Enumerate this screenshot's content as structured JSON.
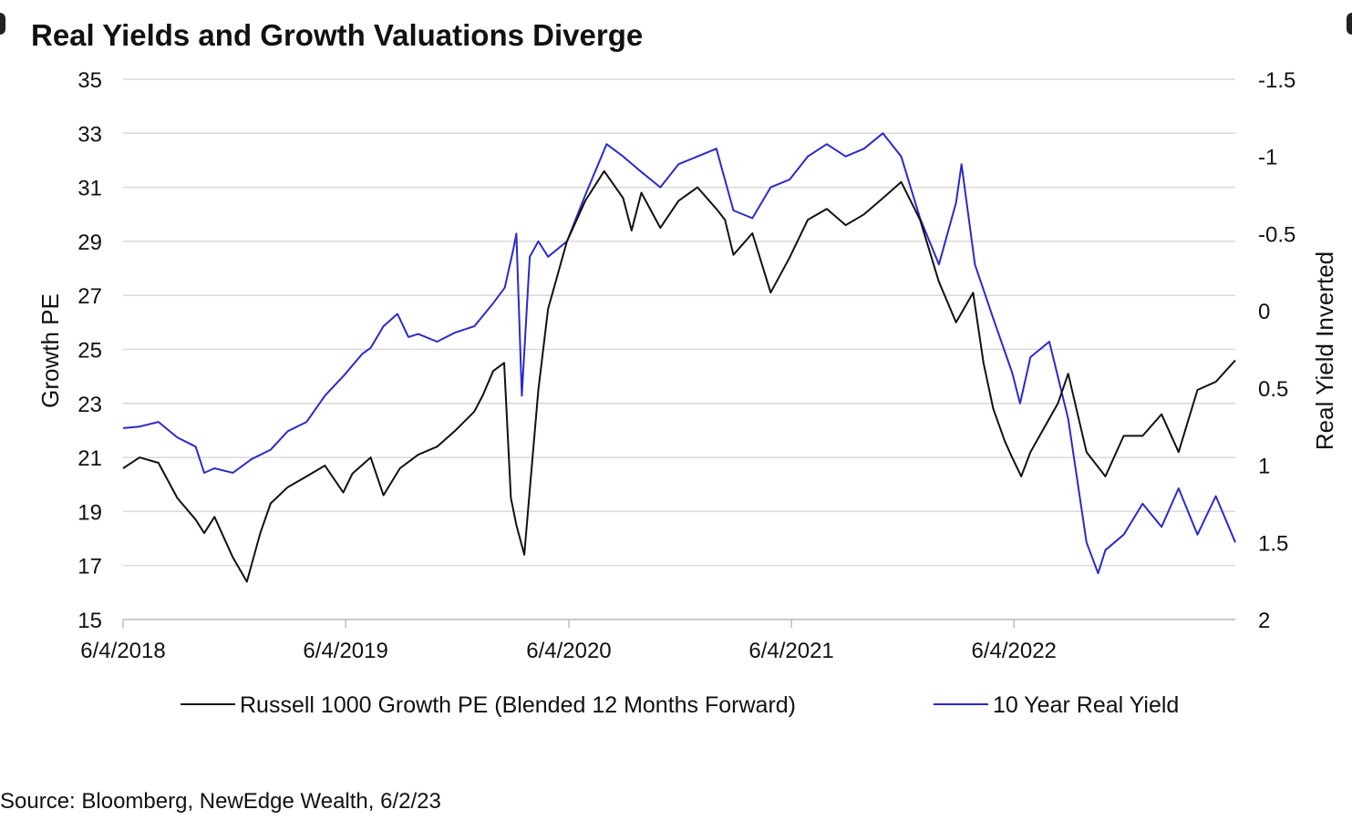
{
  "title": "Real Yields and Growth Valuations Diverge",
  "source": "Source: Bloomberg, NewEdge Wealth, 6/2/23",
  "chart_data": {
    "type": "line",
    "title": "Real Yields and Growth Valuations Diverge",
    "xlabel": "",
    "ylabel": "Growth PE",
    "ylabel_right": "Real Yield Inverted",
    "ylim": [
      15,
      35
    ],
    "ylim_right": [
      2,
      -1.5
    ],
    "right_axis_inverted": true,
    "yticks": [
      "35",
      "33",
      "31",
      "29",
      "27",
      "25",
      "23",
      "21",
      "19",
      "17",
      "15"
    ],
    "yticks_right": [
      "-1.5",
      "-1",
      "-0.5",
      "0",
      "0.5",
      "1",
      "1.5",
      "2"
    ],
    "xticks": [
      "6/4/2018",
      "6/4/2019",
      "6/4/2020",
      "6/4/2021",
      "6/4/2022"
    ],
    "xlim": [
      "2018-06-04",
      "2023-06-02"
    ],
    "grid": "horizontal",
    "legend_position": "bottom",
    "series": [
      {
        "name": "Russell 1000 Growth PE (Blended 12 Months Forward)",
        "axis": "left",
        "color": "#111111",
        "x": [
          "2018-06-04",
          "2018-07-01",
          "2018-08-01",
          "2018-09-01",
          "2018-10-01",
          "2018-10-15",
          "2018-11-01",
          "2018-12-01",
          "2018-12-24",
          "2019-01-15",
          "2019-02-01",
          "2019-03-01",
          "2019-04-01",
          "2019-05-01",
          "2019-05-31",
          "2019-06-15",
          "2019-07-15",
          "2019-08-05",
          "2019-09-01",
          "2019-10-01",
          "2019-11-01",
          "2019-12-01",
          "2020-01-01",
          "2020-01-15",
          "2020-02-01",
          "2020-02-19",
          "2020-03-01",
          "2020-03-10",
          "2020-03-23",
          "2020-04-01",
          "2020-04-15",
          "2020-05-01",
          "2020-06-01",
          "2020-07-01",
          "2020-08-01",
          "2020-09-01",
          "2020-09-15",
          "2020-10-01",
          "2020-11-01",
          "2020-12-01",
          "2021-01-01",
          "2021-02-01",
          "2021-02-15",
          "2021-03-01",
          "2021-04-01",
          "2021-05-01",
          "2021-06-01",
          "2021-07-01",
          "2021-08-01",
          "2021-09-01",
          "2021-10-01",
          "2021-11-01",
          "2021-12-01",
          "2022-01-01",
          "2022-02-01",
          "2022-03-01",
          "2022-03-29",
          "2022-04-15",
          "2022-05-01",
          "2022-05-20",
          "2022-06-01",
          "2022-06-16",
          "2022-07-01",
          "2022-08-15",
          "2022-09-01",
          "2022-10-01",
          "2022-11-01",
          "2022-12-01",
          "2023-01-01",
          "2023-02-01",
          "2023-03-01",
          "2023-04-01",
          "2023-05-01",
          "2023-06-02"
        ],
        "values": [
          20.6,
          21.0,
          20.8,
          19.5,
          18.7,
          18.2,
          18.8,
          17.3,
          16.4,
          18.2,
          19.3,
          19.9,
          20.3,
          20.7,
          19.7,
          20.4,
          21.0,
          19.6,
          20.6,
          21.1,
          21.4,
          22.0,
          22.7,
          23.3,
          24.2,
          24.5,
          19.5,
          18.5,
          17.4,
          19.8,
          23.5,
          26.5,
          29.0,
          30.5,
          31.6,
          30.6,
          29.4,
          30.8,
          29.5,
          30.5,
          31.0,
          30.2,
          29.8,
          28.5,
          29.3,
          27.1,
          28.4,
          29.8,
          30.2,
          29.6,
          30.0,
          30.6,
          31.2,
          29.8,
          27.5,
          26.0,
          27.1,
          24.5,
          22.8,
          21.6,
          21.0,
          20.3,
          21.2,
          23.0,
          24.1,
          21.2,
          20.3,
          21.8,
          21.8,
          22.6,
          21.2,
          23.5,
          23.8,
          24.6
        ]
      },
      {
        "name": "10 Year Real Yield",
        "axis": "right",
        "color": "#2a2acc",
        "x": [
          "2018-06-04",
          "2018-07-01",
          "2018-08-01",
          "2018-09-01",
          "2018-10-01",
          "2018-10-15",
          "2018-11-01",
          "2018-12-01",
          "2019-01-01",
          "2019-02-01",
          "2019-03-01",
          "2019-04-01",
          "2019-05-01",
          "2019-06-01",
          "2019-07-01",
          "2019-07-15",
          "2019-08-05",
          "2019-08-28",
          "2019-09-15",
          "2019-10-01",
          "2019-11-01",
          "2019-12-01",
          "2020-01-01",
          "2020-02-01",
          "2020-02-20",
          "2020-03-05",
          "2020-03-10",
          "2020-03-19",
          "2020-04-01",
          "2020-04-15",
          "2020-05-01",
          "2020-06-01",
          "2020-07-01",
          "2020-08-05",
          "2020-09-01",
          "2020-10-01",
          "2020-11-01",
          "2020-12-01",
          "2021-01-01",
          "2021-02-01",
          "2021-03-01",
          "2021-04-01",
          "2021-05-01",
          "2021-06-01",
          "2021-07-01",
          "2021-08-01",
          "2021-09-01",
          "2021-10-01",
          "2021-11-01",
          "2021-12-01",
          "2022-01-01",
          "2022-02-01",
          "2022-02-15",
          "2022-03-01",
          "2022-03-10",
          "2022-04-01",
          "2022-05-01",
          "2022-06-01",
          "2022-06-14",
          "2022-07-01",
          "2022-08-01",
          "2022-09-01",
          "2022-10-01",
          "2022-10-20",
          "2022-11-01",
          "2022-12-01",
          "2023-01-01",
          "2023-02-01",
          "2023-03-01",
          "2023-04-01",
          "2023-05-01",
          "2023-06-02"
        ],
        "values": [
          0.76,
          0.75,
          0.72,
          0.82,
          0.88,
          1.05,
          1.02,
          1.05,
          0.96,
          0.9,
          0.78,
          0.72,
          0.55,
          0.42,
          0.28,
          0.24,
          0.1,
          0.02,
          0.17,
          0.15,
          0.2,
          0.14,
          0.1,
          -0.05,
          -0.15,
          -0.4,
          -0.5,
          0.55,
          -0.35,
          -0.45,
          -0.35,
          -0.45,
          -0.75,
          -1.08,
          -1.0,
          -0.9,
          -0.8,
          -0.95,
          -1.0,
          -1.05,
          -0.65,
          -0.6,
          -0.8,
          -0.85,
          -1.0,
          -1.08,
          -1.0,
          -1.05,
          -1.15,
          -1.0,
          -0.6,
          -0.3,
          -0.5,
          -0.7,
          -0.95,
          -0.3,
          0.05,
          0.4,
          0.6,
          0.3,
          0.2,
          0.7,
          1.5,
          1.7,
          1.55,
          1.45,
          1.25,
          1.4,
          1.15,
          1.45,
          1.2,
          1.5
        ]
      }
    ]
  }
}
